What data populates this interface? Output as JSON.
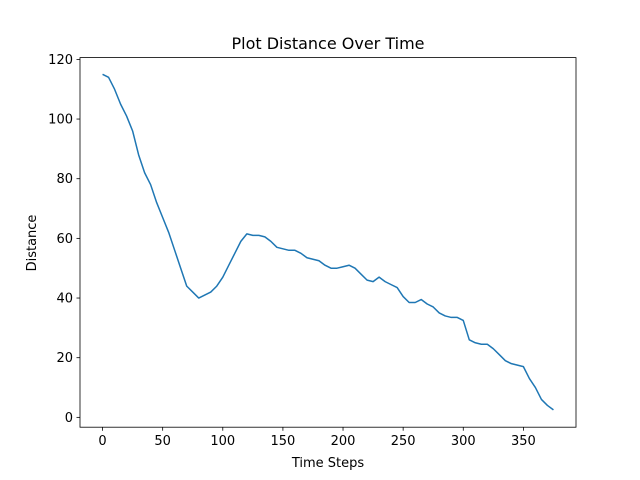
{
  "chart_data": {
    "type": "line",
    "title": "Plot Distance Over Time",
    "xlabel": "Time Steps",
    "ylabel": "Distance",
    "x": [
      0,
      5,
      10,
      15,
      20,
      25,
      30,
      35,
      40,
      45,
      50,
      55,
      60,
      65,
      70,
      75,
      80,
      85,
      90,
      95,
      100,
      105,
      110,
      115,
      120,
      125,
      130,
      135,
      140,
      145,
      150,
      155,
      160,
      165,
      170,
      175,
      180,
      185,
      190,
      195,
      200,
      205,
      210,
      215,
      220,
      225,
      230,
      235,
      240,
      245,
      250,
      255,
      260,
      265,
      270,
      275,
      280,
      285,
      290,
      295,
      300,
      305,
      310,
      315,
      320,
      325,
      330,
      335,
      340,
      345,
      350,
      355,
      360,
      365,
      370,
      375
    ],
    "series": [
      {
        "name": "Distance",
        "color": "#1f77b4",
        "values": [
          115,
          114,
          110,
          105,
          101,
          96,
          88,
          82,
          78,
          72,
          67,
          62,
          56,
          50,
          44,
          42,
          40,
          41,
          42,
          44,
          47,
          51,
          55,
          59,
          61.5,
          61,
          61,
          60.5,
          59,
          57,
          56.5,
          56,
          56,
          55,
          53.5,
          53,
          52.5,
          51,
          50,
          50,
          50.5,
          51,
          50,
          48,
          46,
          45.5,
          47,
          45.5,
          44.5,
          43.5,
          40.5,
          38.5,
          38.5,
          39.5,
          38,
          37,
          35,
          34,
          33.5,
          33.5,
          32.5,
          26,
          25,
          24.5,
          24.5,
          23,
          21,
          19,
          18,
          17.5,
          17,
          13,
          10,
          6,
          4,
          2.5
        ]
      }
    ],
    "xlim": [
      -18.75,
      393.75
    ],
    "ylim": [
      -3.3,
      120.6
    ],
    "xticks": [
      0,
      50,
      100,
      150,
      200,
      250,
      300,
      350
    ],
    "yticks": [
      0,
      20,
      40,
      60,
      80,
      100,
      120
    ],
    "grid": false
  }
}
